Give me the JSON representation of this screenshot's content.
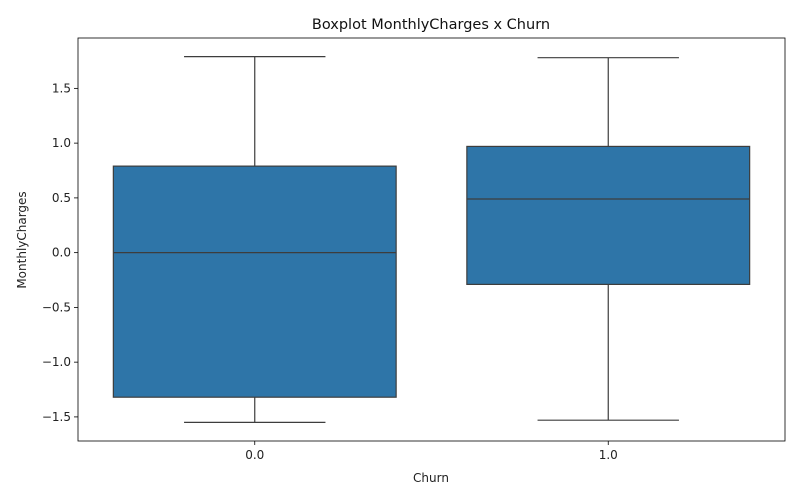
{
  "chart_data": {
    "type": "box",
    "title": "Boxplot MonthlyCharges x Churn",
    "xlabel": "Churn",
    "ylabel": "MonthlyCharges",
    "categories": [
      "0.0",
      "1.0"
    ],
    "boxes": [
      {
        "category": "0.0",
        "whisker_low": -1.55,
        "q1": -1.32,
        "median": 0.0,
        "q3": 0.79,
        "whisker_high": 1.79
      },
      {
        "category": "1.0",
        "whisker_low": -1.53,
        "q1": -0.29,
        "median": 0.49,
        "q3": 0.97,
        "whisker_high": 1.78
      }
    ],
    "ylim": [
      -1.72,
      1.96
    ],
    "yticks": [
      -1.5,
      -1.0,
      -0.5,
      0.0,
      0.5,
      1.0,
      1.5
    ],
    "ytick_labels": [
      "−1.5",
      "−1.0",
      "−0.5",
      "0.0",
      "0.5",
      "1.0",
      "1.5"
    ],
    "grid": false,
    "box_color": "#2e75a8",
    "line_color": "#3d3d3d"
  }
}
